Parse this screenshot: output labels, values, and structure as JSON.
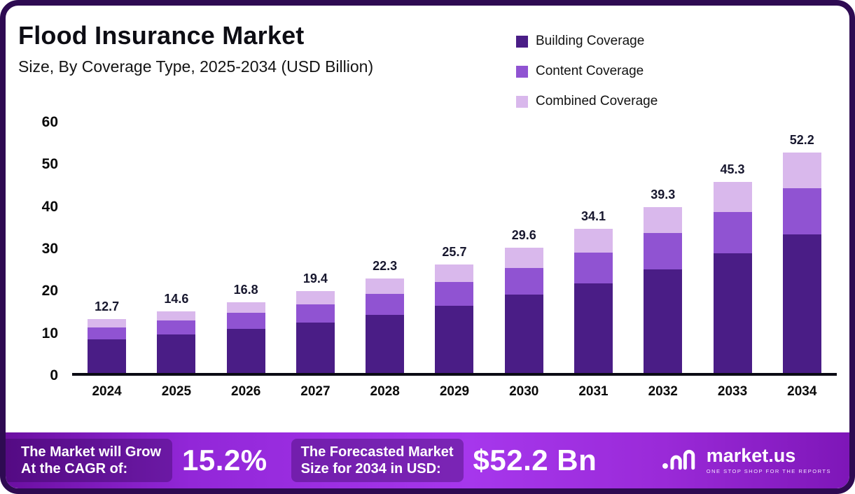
{
  "header": {
    "title": "Flood Insurance Market",
    "subtitle": "Size, By Coverage Type, 2025-2034 (USD Billion)"
  },
  "colors": {
    "frame_border": "#2e0b52",
    "building": "#4a1d86",
    "content": "#9053d2",
    "combined": "#d9b8ec",
    "footer_purple": "#a637ec"
  },
  "chart_data": {
    "type": "bar",
    "stacked": true,
    "title": "Flood Insurance Market",
    "subtitle": "Size, By Coverage Type, 2025-2034 (USD Billion)",
    "categories": [
      "2024",
      "2025",
      "2026",
      "2027",
      "2028",
      "2029",
      "2030",
      "2031",
      "2032",
      "2033",
      "2034"
    ],
    "series": [
      {
        "name": "Building Coverage",
        "color": "#4a1d86",
        "values": [
          8.0,
          9.2,
          10.5,
          12.0,
          13.8,
          16.0,
          18.5,
          21.3,
          24.6,
          28.3,
          32.8
        ]
      },
      {
        "name": "Content Coverage",
        "color": "#9053d2",
        "values": [
          2.8,
          3.2,
          3.7,
          4.2,
          4.9,
          5.6,
          6.4,
          7.3,
          8.5,
          9.8,
          11.0
        ]
      },
      {
        "name": "Combined Coverage",
        "color": "#d9b8ec",
        "values": [
          1.9,
          2.2,
          2.6,
          3.2,
          3.6,
          4.1,
          4.7,
          5.5,
          6.2,
          7.2,
          8.4
        ]
      }
    ],
    "totals": [
      12.7,
      14.6,
      16.8,
      19.4,
      22.3,
      25.7,
      29.6,
      34.1,
      39.3,
      45.3,
      52.2
    ],
    "xlabel": "",
    "ylabel": "",
    "ylim": [
      0,
      60
    ],
    "yticks": [
      0,
      10,
      20,
      30,
      40,
      50,
      60
    ],
    "grid": false,
    "legend_position": "top-right"
  },
  "footer": {
    "cagr_line1": "The Market will Grow",
    "cagr_line2": "At the CAGR of:",
    "cagr_value": "15.2%",
    "forecast_line1": "The Forecasted Market",
    "forecast_line2": "Size for 2034 in USD:",
    "forecast_value": "$52.2 Bn",
    "brand": {
      "name": "market.us",
      "tagline": "ONE STOP SHOP FOR THE REPORTS"
    }
  }
}
